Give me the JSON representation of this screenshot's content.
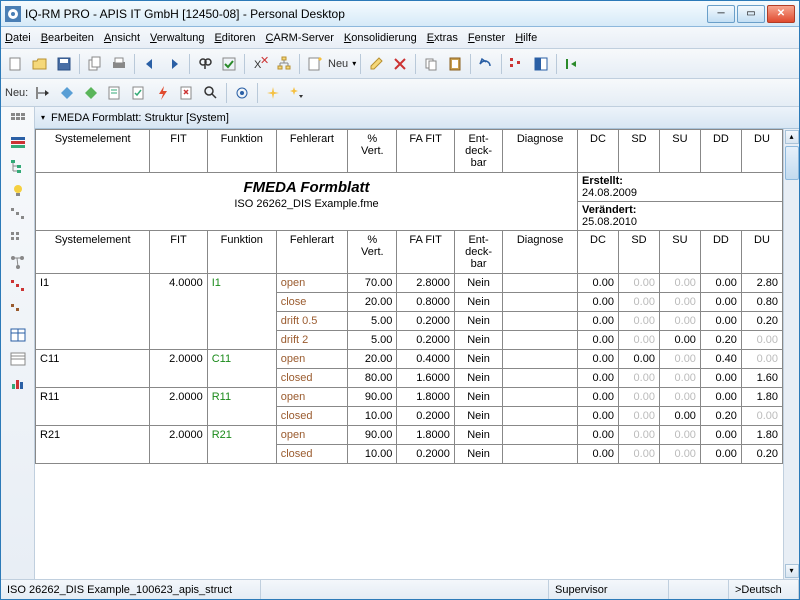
{
  "window": {
    "title": "IQ-RM PRO - APIS IT GmbH [12450-08] - Personal Desktop"
  },
  "menus": [
    "Datei",
    "Bearbeiten",
    "Ansicht",
    "Verwaltung",
    "Editoren",
    "CARM-Server",
    "Konsolidierung",
    "Extras",
    "Fenster",
    "Hilfe"
  ],
  "toolbar2_label": "Neu:",
  "toolbar_neu": "Neu",
  "tab": {
    "label": "FMEDA Formblatt: Struktur [System]"
  },
  "headers": [
    "Systemelement",
    "FIT",
    "Funktion",
    "Fehlerart",
    "%\nVert.",
    "FA FIT",
    "Ent-\ndeck-\nbar",
    "Diagnose",
    "DC",
    "SD",
    "SU",
    "DD",
    "DU"
  ],
  "form_title": "FMEDA Formblatt",
  "form_sub": "ISO 26262_DIS Example.fme",
  "meta": {
    "created_label": "Erstellt:",
    "created_val": "24.08.2009",
    "changed_label": "Verändert:",
    "changed_val": "25.08.2010"
  },
  "rows": [
    {
      "sys": "I1",
      "fit": "4.0000",
      "funk": "I1",
      "span": 4,
      "fr": [
        {
          "f": "open",
          "pv": "70.00",
          "fa": "2.8000",
          "ed": "Nein",
          "dc": "0.00",
          "sd": "0.00",
          "su": "0.00",
          "dd": "0.00",
          "du": "2.80",
          "sdg": true,
          "sug": true
        },
        {
          "f": "close",
          "pv": "20.00",
          "fa": "0.8000",
          "ed": "Nein",
          "dc": "0.00",
          "sd": "0.00",
          "su": "0.00",
          "dd": "0.00",
          "du": "0.80",
          "sdg": true,
          "sug": true
        },
        {
          "f": "drift 0.5",
          "pv": "5.00",
          "fa": "0.2000",
          "ed": "Nein",
          "dc": "0.00",
          "sd": "0.00",
          "su": "0.00",
          "dd": "0.00",
          "du": "0.20",
          "sdg": true,
          "sug": true
        },
        {
          "f": "drift 2",
          "pv": "5.00",
          "fa": "0.2000",
          "ed": "Nein",
          "dc": "0.00",
          "sd": "0.00",
          "su": "0.00",
          "dd": "0.20",
          "du": "0.00",
          "sdg": true,
          "dug": true
        }
      ]
    },
    {
      "sys": "C11",
      "fit": "2.0000",
      "funk": "C11",
      "span": 2,
      "fr": [
        {
          "f": "open",
          "pv": "20.00",
          "fa": "0.4000",
          "ed": "Nein",
          "dc": "0.00",
          "sd": "0.00",
          "su": "0.00",
          "dd": "0.40",
          "du": "0.00",
          "sug": true,
          "dug": true
        },
        {
          "f": "closed",
          "pv": "80.00",
          "fa": "1.6000",
          "ed": "Nein",
          "dc": "0.00",
          "sd": "0.00",
          "su": "0.00",
          "dd": "0.00",
          "du": "1.60",
          "sdg": true,
          "sug": true
        }
      ]
    },
    {
      "sys": "R11",
      "fit": "2.0000",
      "funk": "R11",
      "span": 2,
      "fr": [
        {
          "f": "open",
          "pv": "90.00",
          "fa": "1.8000",
          "ed": "Nein",
          "dc": "0.00",
          "sd": "0.00",
          "su": "0.00",
          "dd": "0.00",
          "du": "1.80",
          "sdg": true,
          "sug": true
        },
        {
          "f": "closed",
          "pv": "10.00",
          "fa": "0.2000",
          "ed": "Nein",
          "dc": "0.00",
          "sd": "0.00",
          "su": "0.00",
          "dd": "0.20",
          "du": "0.00",
          "sdg": true,
          "dug": true
        }
      ]
    },
    {
      "sys": "R21",
      "fit": "2.0000",
      "funk": "R21",
      "span": 2,
      "fr": [
        {
          "f": "open",
          "pv": "90.00",
          "fa": "1.8000",
          "ed": "Nein",
          "dc": "0.00",
          "sd": "0.00",
          "su": "0.00",
          "dd": "0.00",
          "du": "1.80",
          "sdg": true,
          "sug": true
        },
        {
          "f": "closed",
          "pv": "10.00",
          "fa": "0.2000",
          "ed": "Nein",
          "dc": "0.00",
          "sd": "0.00",
          "su": "0.00",
          "dd": "0.00",
          "du": "0.20",
          "sdg": true,
          "sug": true
        }
      ]
    }
  ],
  "status": {
    "file": "ISO 26262_DIS Example_100623_apis_struct",
    "user": "Supervisor",
    "lang": ">Deutsch"
  },
  "colors": {
    "green": "#1a8a1a",
    "brown": "#9a5b2e",
    "gray": "#bbbbbb",
    "border": "#888888"
  }
}
